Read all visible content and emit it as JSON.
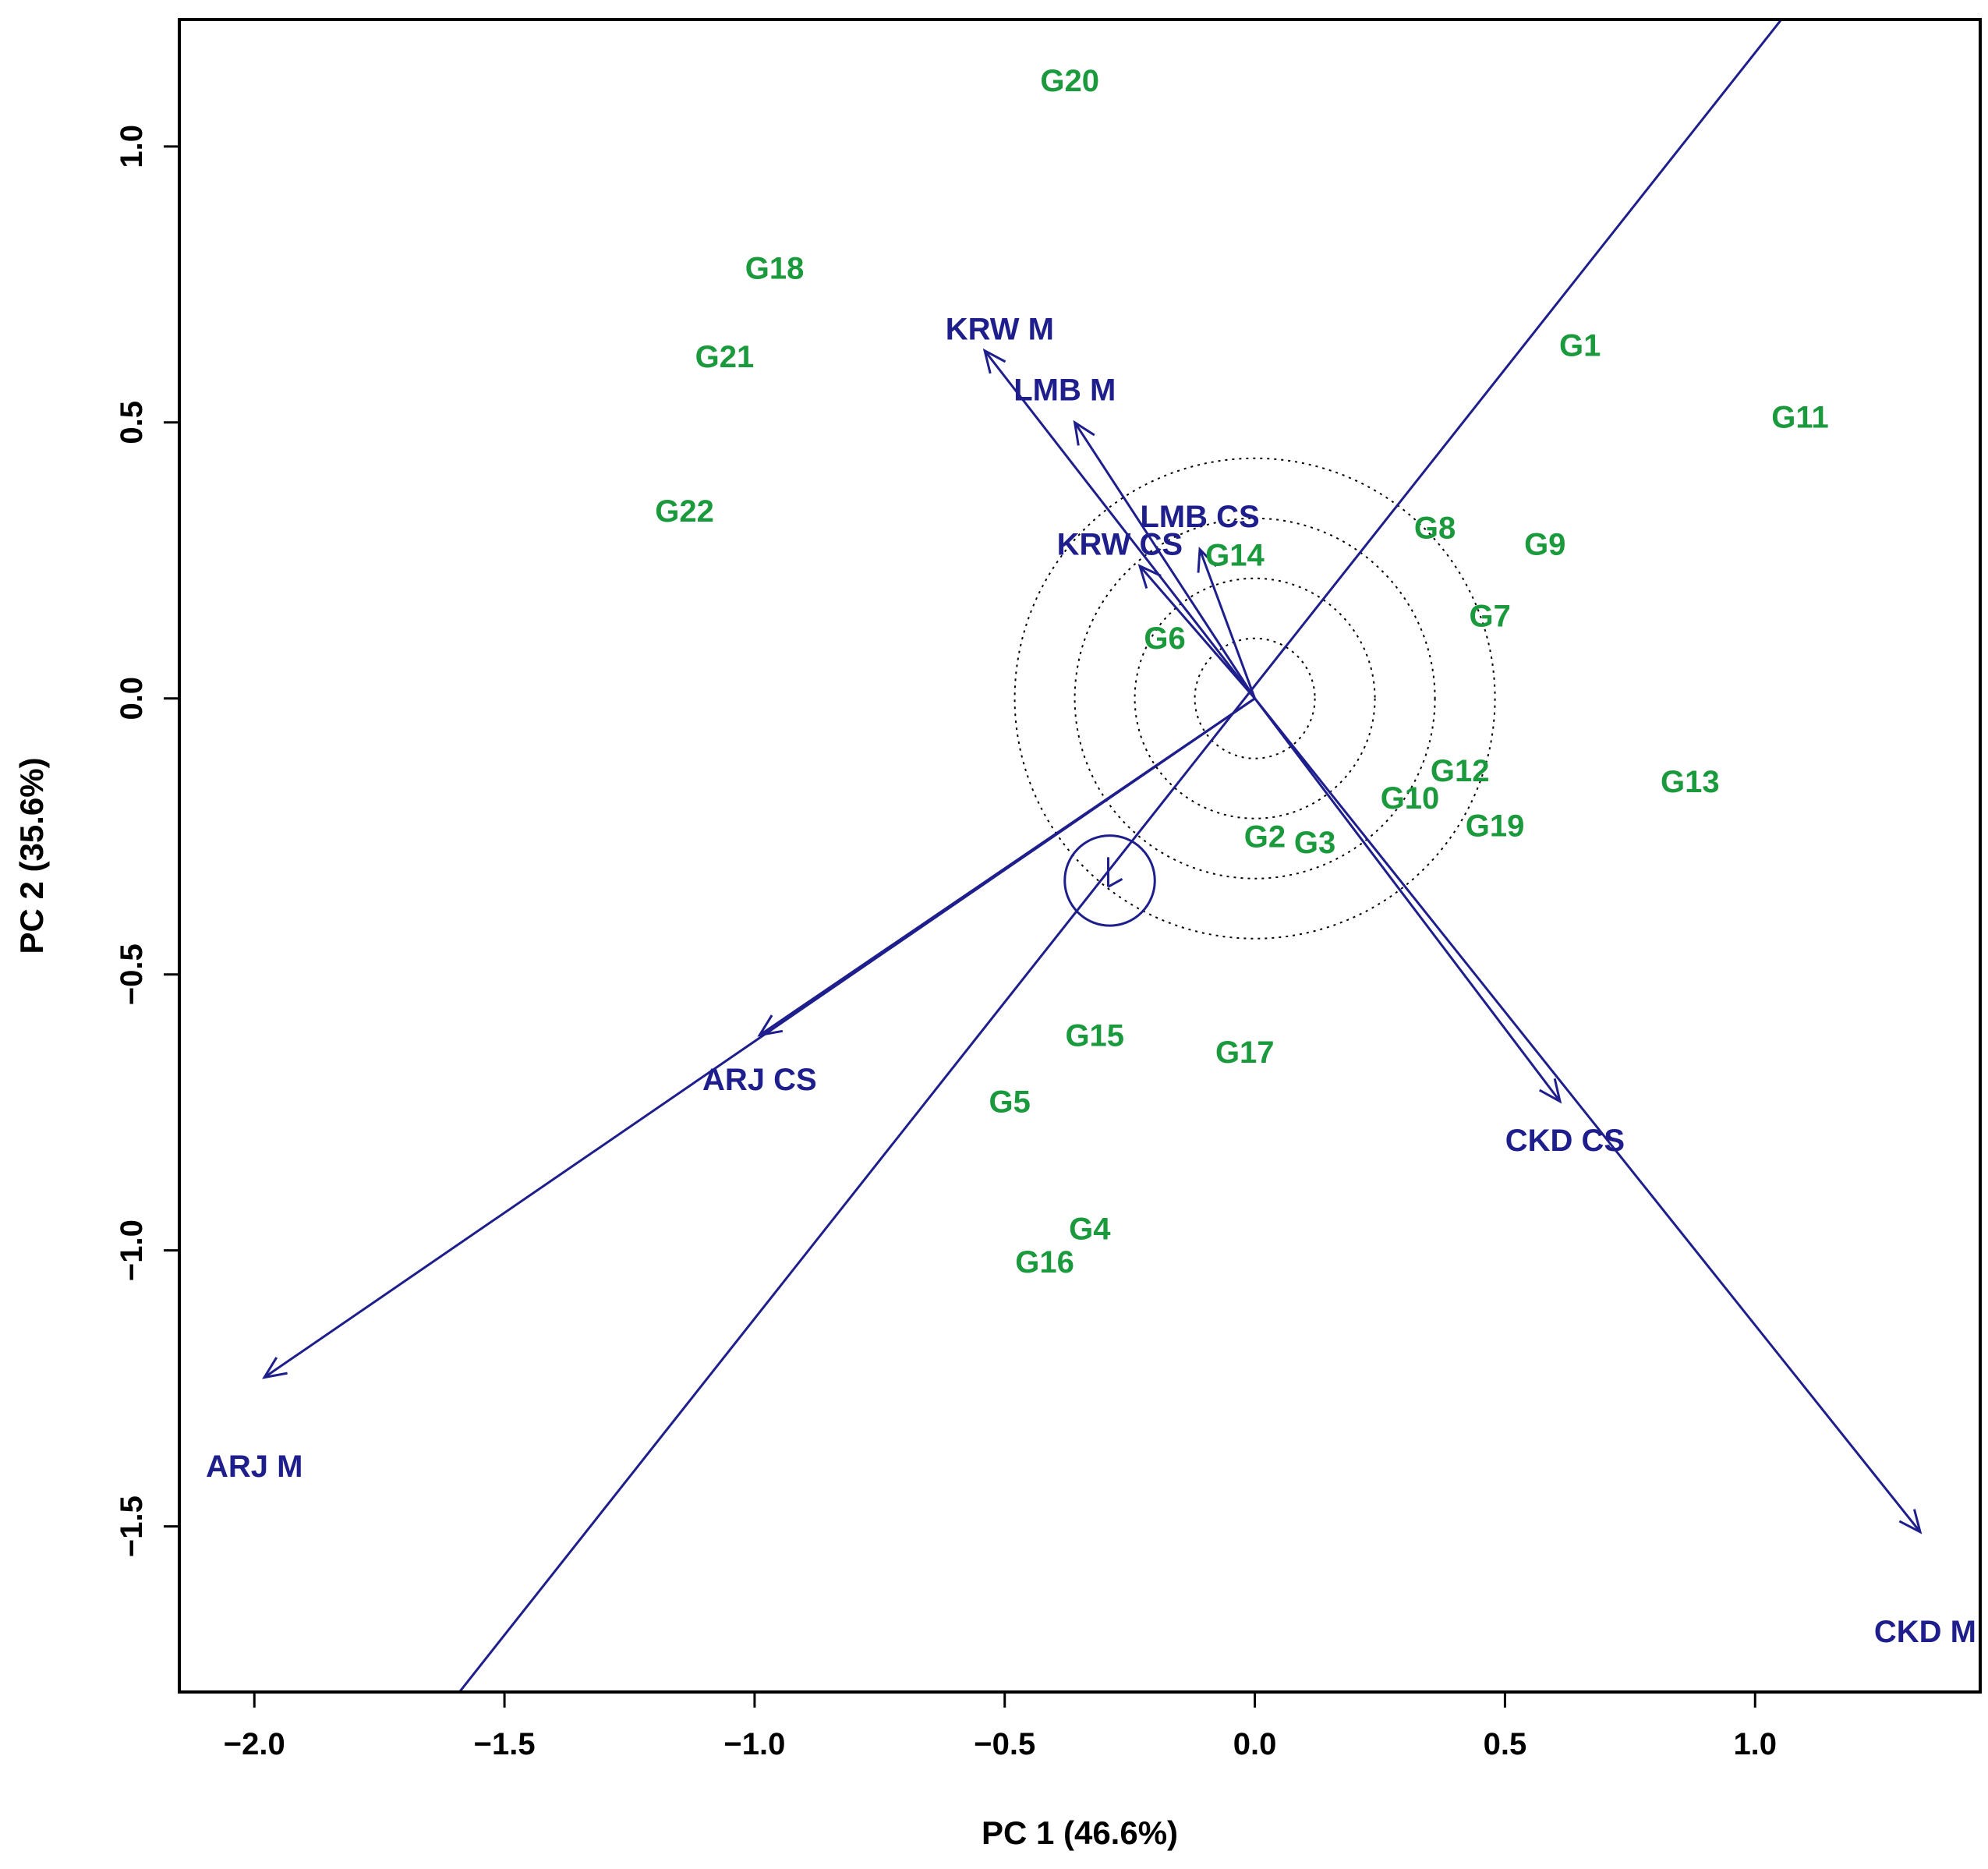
{
  "chart_data": {
    "type": "scatter",
    "subtype": "GGE biplot (average environment coordination)",
    "xlabel": "PC 1 (46.6%)",
    "ylabel": "PC 2 (35.6%)",
    "xlim": [
      -2.15,
      1.45
    ],
    "ylim": [
      -1.8,
      1.23
    ],
    "xticks": [
      -2.0,
      -1.5,
      -1.0,
      -0.5,
      0.0,
      0.5,
      1.0
    ],
    "xtick_labels": [
      "−2.0",
      "−1.5",
      "−1.0",
      "−0.5",
      "0.0",
      "0.5",
      "1.0"
    ],
    "yticks": [
      -1.5,
      -1.0,
      -0.5,
      0.0,
      0.5,
      1.0
    ],
    "ytick_labels": [
      "−1.5",
      "−1.0",
      "−0.5",
      "0.0",
      "0.5",
      "1.0"
    ],
    "colors": {
      "genotype": "#1a9a3c",
      "environment": "#1e1e8c",
      "axis": "#000000",
      "circle": "#000000"
    },
    "genotypes": [
      {
        "name": "G1",
        "x": 0.65,
        "y": 0.64
      },
      {
        "name": "G2",
        "x": 0.02,
        "y": -0.25
      },
      {
        "name": "G3",
        "x": 0.12,
        "y": -0.26
      },
      {
        "name": "G4",
        "x": -0.33,
        "y": -0.96
      },
      {
        "name": "G5",
        "x": -0.49,
        "y": -0.73
      },
      {
        "name": "G6",
        "x": -0.18,
        "y": 0.11
      },
      {
        "name": "G7",
        "x": 0.47,
        "y": 0.15
      },
      {
        "name": "G8",
        "x": 0.36,
        "y": 0.31
      },
      {
        "name": "G9",
        "x": 0.58,
        "y": 0.28
      },
      {
        "name": "G10",
        "x": 0.31,
        "y": -0.18
      },
      {
        "name": "G11",
        "x": 1.09,
        "y": 0.51
      },
      {
        "name": "G12",
        "x": 0.41,
        "y": -0.13
      },
      {
        "name": "G13",
        "x": 0.87,
        "y": -0.15
      },
      {
        "name": "G14",
        "x": -0.04,
        "y": 0.26
      },
      {
        "name": "G15",
        "x": -0.32,
        "y": -0.61
      },
      {
        "name": "G16",
        "x": -0.42,
        "y": -1.02
      },
      {
        "name": "G17",
        "x": -0.02,
        "y": -0.64
      },
      {
        "name": "G18",
        "x": -0.96,
        "y": 0.78
      },
      {
        "name": "G19",
        "x": 0.48,
        "y": -0.23
      },
      {
        "name": "G20",
        "x": -0.37,
        "y": 1.12
      },
      {
        "name": "G21",
        "x": -1.06,
        "y": 0.62
      },
      {
        "name": "G22",
        "x": -1.14,
        "y": 0.34
      }
    ],
    "environments": [
      {
        "name": "KRW M",
        "x": -0.54,
        "y": 0.63,
        "label_x": -0.51,
        "label_y": 0.67
      },
      {
        "name": "LMB M",
        "x": -0.36,
        "y": 0.5,
        "label_x": -0.38,
        "label_y": 0.56
      },
      {
        "name": "LMB CS",
        "x": -0.11,
        "y": 0.27,
        "label_x": -0.11,
        "label_y": 0.33
      },
      {
        "name": "KRW CS",
        "x": -0.23,
        "y": 0.24,
        "label_x": -0.27,
        "label_y": 0.28
      },
      {
        "name": "ARJ CS",
        "x": -0.99,
        "y": -0.61,
        "label_x": -0.99,
        "label_y": -0.69
      },
      {
        "name": "ARJ M",
        "x": -1.98,
        "y": -1.23,
        "label_x": -2.0,
        "label_y": -1.39
      },
      {
        "name": "CKD CS",
        "x": 0.61,
        "y": -0.73,
        "label_x": 0.62,
        "label_y": -0.8
      },
      {
        "name": "CKD M",
        "x": 1.33,
        "y": -1.51,
        "label_x": 1.34,
        "label_y": -1.69
      }
    ],
    "average_environment_axis": {
      "from": [
        1.07,
        1.25
      ],
      "to": [
        -1.59,
        -1.8
      ]
    },
    "average_environment_marker": {
      "x": -0.29,
      "y": -0.33,
      "radius": 0.09
    },
    "concentric_circle_radii": [
      0.12,
      0.24,
      0.36,
      0.48
    ]
  }
}
